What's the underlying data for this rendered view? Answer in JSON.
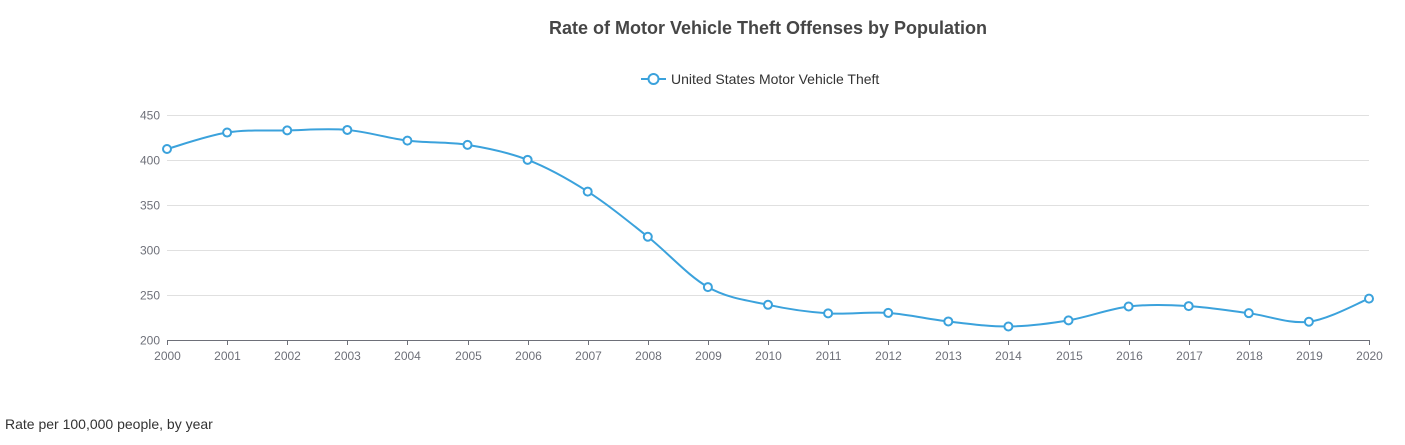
{
  "chart_data": {
    "type": "line",
    "title": "Rate of Motor Vehicle Theft Offenses by Population",
    "x": [
      "2000",
      "2001",
      "2002",
      "2003",
      "2004",
      "2005",
      "2006",
      "2007",
      "2008",
      "2009",
      "2010",
      "2011",
      "2012",
      "2013",
      "2014",
      "2015",
      "2016",
      "2017",
      "2018",
      "2019",
      "2020"
    ],
    "series": [
      {
        "name": "United States Motor Vehicle Theft",
        "color": "#3ba2dc",
        "values": [
          412.2,
          430.5,
          432.9,
          433.4,
          421.5,
          416.8,
          400.2,
          364.9,
          314.7,
          258.8,
          239.1,
          229.6,
          230.1,
          220.6,
          215.0,
          221.8,
          237.2,
          237.7,
          229.8,
          220.3,
          246.0
        ]
      }
    ],
    "ylim": [
      200,
      450
    ],
    "yticks": [
      200,
      250,
      300,
      350,
      400,
      450
    ],
    "grid": "horizontal",
    "legend": "top-center",
    "xlabel": "",
    "ylabel": ""
  },
  "footnote": "Rate per 100,000 people, by year"
}
